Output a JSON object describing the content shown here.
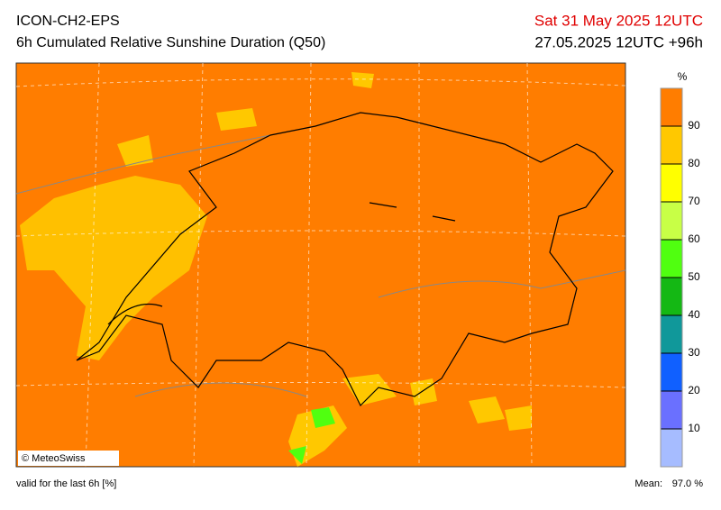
{
  "header": {
    "model": "ICON-CH2-EPS",
    "product": "6h Cumulated Relative Sunshine Duration (Q50)",
    "valid_time": "Sat 31 May 2025 12UTC",
    "run": "27.05.2025 12UTC +96h"
  },
  "legend": {
    "unit": "%",
    "ticks": [
      10,
      20,
      30,
      40,
      50,
      60,
      70,
      80,
      90
    ],
    "colors": [
      "#a6bcff",
      "#6a70ff",
      "#1060ff",
      "#10989a",
      "#14b814",
      "#50ff10",
      "#c8ff46",
      "#ffff00",
      "#ffc800",
      "#ff7d00"
    ]
  },
  "footer": {
    "note": "valid for the last 6h [%]",
    "mean_label": "Mean:",
    "mean": "97.0 %"
  },
  "copyright": "© MeteoSwiss"
}
